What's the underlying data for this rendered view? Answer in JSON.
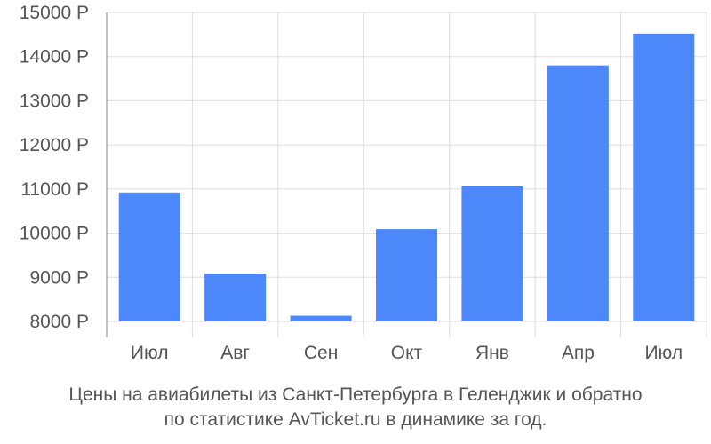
{
  "chart_data": {
    "type": "bar",
    "categories": [
      "Июл",
      "Авг",
      "Сен",
      "Окт",
      "Янв",
      "Апр",
      "Июл"
    ],
    "values": [
      10920,
      9080,
      8130,
      10090,
      11060,
      13800,
      14520
    ],
    "ylim": [
      8000,
      15000
    ],
    "yticks": [
      8000,
      9000,
      10000,
      11000,
      12000,
      13000,
      14000,
      15000
    ],
    "ytick_suffix": " Р",
    "grid": true,
    "legend": "none",
    "bar_color": "#4d88fb"
  },
  "caption": {
    "line1": "Цены на авиабилеты из Санкт-Петербурга в Геленджик и обратно",
    "line2": "по статистике AvTicket.ru в динамике за год."
  }
}
